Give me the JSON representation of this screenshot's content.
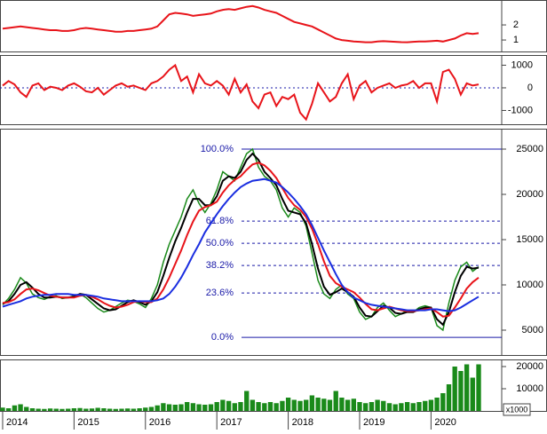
{
  "chart_data": [
    {
      "type": "line",
      "ylim": [
        0.24,
        3.65
      ],
      "yticks": [
        1,
        2
      ],
      "series": [
        {
          "color": "#e8141a",
          "values": [
            1.75,
            1.8,
            1.85,
            1.9,
            1.85,
            1.8,
            1.75,
            1.7,
            1.65,
            1.65,
            1.6,
            1.6,
            1.65,
            1.75,
            1.8,
            1.75,
            1.7,
            1.65,
            1.6,
            1.55,
            1.55,
            1.6,
            1.6,
            1.65,
            1.7,
            1.75,
            1.9,
            2.3,
            2.7,
            2.8,
            2.75,
            2.7,
            2.6,
            2.65,
            2.7,
            2.75,
            2.9,
            3.0,
            3.05,
            3.0,
            3.1,
            3.2,
            3.25,
            3.15,
            3.0,
            2.9,
            2.8,
            2.6,
            2.4,
            2.2,
            2.1,
            2.0,
            1.9,
            1.7,
            1.5,
            1.3,
            1.1,
            1.0,
            0.95,
            0.9,
            0.88,
            0.85,
            0.85,
            0.9,
            0.92,
            0.9,
            0.88,
            0.86,
            0.85,
            0.88,
            0.9,
            0.9,
            0.92,
            0.95,
            0.9,
            1.0,
            1.1,
            1.3,
            1.45,
            1.4,
            1.45
          ]
        }
      ]
    },
    {
      "type": "line",
      "ylim": [
        -1610,
        1450
      ],
      "yticks": [
        -1000,
        0,
        1000
      ],
      "ref_line": 0,
      "ref_color": "#1a1aa8",
      "series": [
        {
          "color": "#e8141a",
          "values": [
            100,
            300,
            150,
            -200,
            -400,
            100,
            200,
            -100,
            50,
            0,
            -100,
            100,
            200,
            50,
            -150,
            -200,
            0,
            -300,
            -100,
            100,
            200,
            50,
            100,
            0,
            -100,
            200,
            300,
            500,
            800,
            1000,
            300,
            500,
            -200,
            600,
            200,
            100,
            300,
            100,
            -300,
            400,
            -200,
            150,
            -600,
            -900,
            -300,
            -200,
            -800,
            -400,
            -500,
            -300,
            -1100,
            -1400,
            -700,
            200,
            -200,
            -600,
            -400,
            200,
            600,
            -500,
            100,
            300,
            -200,
            0,
            100,
            200,
            0,
            100,
            150,
            300,
            0,
            200,
            200,
            -600,
            700,
            800,
            400,
            -300,
            200,
            100,
            150
          ]
        }
      ]
    },
    {
      "type": "line",
      "ylim": [
        2255,
        27255
      ],
      "yticks": [
        5000,
        10000,
        15000,
        20000,
        25000
      ],
      "fib_lines": [
        4200,
        9110,
        12150,
        14600,
        17050,
        25000
      ],
      "fib_labels": [
        "0.0%",
        "23.6%",
        "38.2%",
        "50.0%",
        "61.8%",
        "100.0%"
      ],
      "fib_color": "#1a1aa8",
      "series": [
        {
          "color": "#1a8a1a",
          "values": [
            7800,
            8500,
            9500,
            10800,
            10200,
            9000,
            8600,
            8400,
            8700,
            8800,
            8500,
            8600,
            8800,
            9000,
            8600,
            8000,
            7400,
            7000,
            7200,
            7600,
            8000,
            8300,
            8200,
            7900,
            7500,
            8500,
            10000,
            12500,
            14500,
            16000,
            17500,
            19500,
            20500,
            19000,
            18000,
            19000,
            20500,
            22500,
            22000,
            21500,
            23000,
            24500,
            25000,
            23000,
            22000,
            21500,
            20500,
            18500,
            17500,
            18500,
            18000,
            16500,
            13500,
            10500,
            9000,
            8500,
            9500,
            10000,
            9000,
            8500,
            7000,
            6200,
            6500,
            7500,
            8000,
            7200,
            6500,
            6800,
            7200,
            7000,
            7500,
            7700,
            7500,
            5500,
            5000,
            8000,
            10500,
            12000,
            12500,
            11500,
            12000
          ]
        },
        {
          "color": "#000000",
          "values": [
            7900,
            8200,
            9000,
            10000,
            10300,
            9700,
            9000,
            8600,
            8600,
            8700,
            8600,
            8600,
            8700,
            9000,
            8900,
            8400,
            7900,
            7400,
            7200,
            7300,
            7700,
            8100,
            8300,
            8100,
            7800,
            8200,
            9200,
            11000,
            13000,
            14800,
            16300,
            18000,
            19500,
            19500,
            18800,
            18800,
            19800,
            21500,
            22000,
            21800,
            22500,
            23800,
            24500,
            23800,
            22500,
            21800,
            21000,
            19500,
            18200,
            18000,
            17800,
            16800,
            14500,
            11800,
            9800,
            8900,
            9200,
            9600,
            9200,
            8700,
            7500,
            6600,
            6500,
            7100,
            7700,
            7500,
            6900,
            6800,
            7000,
            7000,
            7300,
            7500,
            7500,
            6200,
            5600,
            7000,
            9200,
            11000,
            12000,
            11800,
            11900
          ]
        },
        {
          "color": "#e8141a",
          "values": [
            8000,
            8100,
            8400,
            9000,
            9500,
            9600,
            9400,
            9100,
            8800,
            8700,
            8600,
            8600,
            8600,
            8800,
            8900,
            8700,
            8400,
            8000,
            7700,
            7500,
            7600,
            7800,
            8100,
            8200,
            8100,
            8100,
            8500,
            9500,
            10800,
            12300,
            13800,
            15500,
            17000,
            18200,
            18600,
            18800,
            19200,
            20200,
            21000,
            21600,
            22000,
            22700,
            23300,
            23500,
            23200,
            22600,
            21800,
            20700,
            19600,
            18800,
            18300,
            17500,
            16200,
            14500,
            12600,
            11000,
            10200,
            9800,
            9500,
            9200,
            8600,
            7900,
            7300,
            7200,
            7400,
            7600,
            7400,
            7200,
            7100,
            7100,
            7200,
            7300,
            7400,
            7000,
            6500,
            6600,
            7500,
            8500,
            9600,
            10300,
            10800
          ]
        },
        {
          "color": "#1a2ee0",
          "values": [
            7600,
            7800,
            8000,
            8200,
            8500,
            8700,
            8800,
            8900,
            8900,
            9000,
            9000,
            9000,
            8900,
            8900,
            8900,
            8800,
            8700,
            8500,
            8400,
            8300,
            8200,
            8200,
            8200,
            8200,
            8200,
            8200,
            8300,
            8500,
            9000,
            9800,
            10800,
            12000,
            13300,
            14500,
            15800,
            16800,
            17800,
            18700,
            19500,
            20200,
            20800,
            21200,
            21500,
            21600,
            21700,
            21500,
            21300,
            20800,
            20200,
            19500,
            18700,
            17800,
            16600,
            15200,
            13800,
            12500,
            11200,
            10000,
            9200,
            8600,
            8300,
            8000,
            7800,
            7700,
            7600,
            7500,
            7400,
            7300,
            7200,
            7200,
            7200,
            7200,
            7300,
            7300,
            7200,
            7100,
            7200,
            7500,
            7900,
            8300,
            8700
          ]
        }
      ]
    },
    {
      "type": "bar",
      "ylim": [
        0,
        23200
      ],
      "yticks": [
        10000,
        20000
      ],
      "unit_label": "x1000",
      "color": "#1a8a1a",
      "xlim": [
        2013.963,
        2020.99
      ],
      "xticks": [
        2014,
        2015,
        2016,
        2017,
        2018,
        2019,
        2020
      ],
      "x": [
        2014,
        2014.083,
        2014.167,
        2014.25,
        2014.333,
        2014.417,
        2014.5,
        2014.583,
        2014.667,
        2014.75,
        2014.833,
        2014.917,
        2015,
        2015.083,
        2015.167,
        2015.25,
        2015.333,
        2015.417,
        2015.5,
        2015.583,
        2015.667,
        2015.75,
        2015.833,
        2015.917,
        2016,
        2016.083,
        2016.167,
        2016.25,
        2016.333,
        2016.417,
        2016.5,
        2016.583,
        2016.667,
        2016.75,
        2016.833,
        2016.917,
        2017,
        2017.083,
        2017.167,
        2017.25,
        2017.333,
        2017.417,
        2017.5,
        2017.583,
        2017.667,
        2017.75,
        2017.833,
        2017.917,
        2018,
        2018.083,
        2018.167,
        2018.25,
        2018.333,
        2018.417,
        2018.5,
        2018.583,
        2018.667,
        2018.75,
        2018.833,
        2018.917,
        2019,
        2019.083,
        2019.167,
        2019.25,
        2019.333,
        2019.417,
        2019.5,
        2019.583,
        2019.667,
        2019.75,
        2019.833,
        2019.917,
        2020,
        2020.083,
        2020.167,
        2020.25,
        2020.333,
        2020.417,
        2020.5,
        2020.583,
        2020.667
      ],
      "values": [
        1500,
        1200,
        2500,
        3000,
        1800,
        1200,
        1000,
        900,
        1100,
        1000,
        900,
        1000,
        1200,
        1300,
        1000,
        1100,
        1400,
        1200,
        1000,
        900,
        1000,
        1100,
        1000,
        1200,
        1500,
        1800,
        2500,
        3500,
        3000,
        2800,
        3000,
        4000,
        3500,
        3000,
        2800,
        3000,
        4000,
        5000,
        4500,
        3500,
        4000,
        9000,
        5000,
        4000,
        3500,
        4000,
        3500,
        4500,
        6000,
        5000,
        4500,
        5000,
        7000,
        6000,
        5500,
        5000,
        9000,
        6000,
        5000,
        5500,
        4000,
        3500,
        4000,
        5000,
        4500,
        3500,
        3000,
        3500,
        4000,
        3500,
        4000,
        4500,
        5000,
        6000,
        8000,
        12000,
        20000,
        18000,
        21000,
        15000,
        21000
      ]
    }
  ]
}
